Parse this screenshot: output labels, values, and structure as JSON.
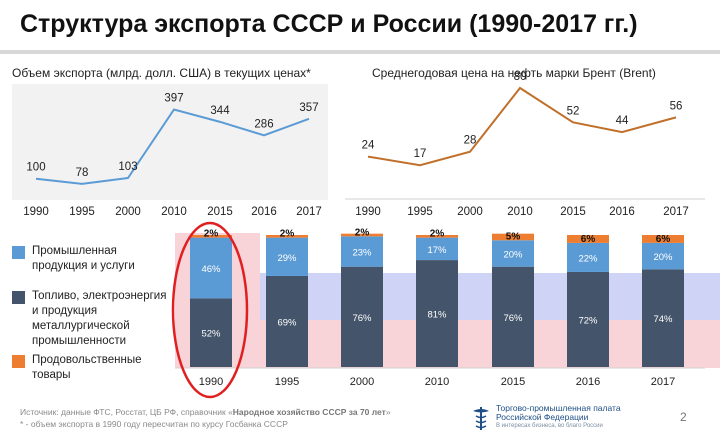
{
  "page": {
    "title": "Структура экспорта СССР и России (1990-2017 гг.)",
    "page_number": "2"
  },
  "colors": {
    "line_export": "#5b9bd5",
    "line_oil": "#c0702a",
    "industrial": "#5b9bd5",
    "fuel": "#44546a",
    "food": "#ed7d31",
    "band_blue": "#cfd3f6",
    "band_pink": "#f8d3d8",
    "highlight_circle": "#e02020"
  },
  "legend": [
    {
      "key": "industrial",
      "label": "Промышленная\nпродукция и услуги"
    },
    {
      "key": "fuel",
      "label": "Топливо, электроэнергия\nи продукция\nметаллургической\nпромышленности"
    },
    {
      "key": "food",
      "label": "Продовольственные\nтовары"
    }
  ],
  "footer": {
    "source_prefix": "Источник: данные ФТС, Росстат, ЦБ РФ, справочник «",
    "source_bold": "Народное хозяйство СССР за 70 лет",
    "source_suffix": "»",
    "note": "* - объем экспорта в 1990 году пересчитан по курсу Госбанка СССР"
  },
  "logo": {
    "line1": "Торгово-промышленная палата",
    "line2": "Российской Федерации",
    "line3": "В интересах бизнеса, во благо России"
  },
  "chart_data": [
    {
      "type": "line",
      "title": "Объем экспорта (млрд. долл. США) в текущих ценах*",
      "categories": [
        "1990",
        "1995",
        "2000",
        "2010",
        "2015",
        "2016",
        "2017"
      ],
      "series": [
        {
          "values": [
            100,
            78,
            103,
            397,
            344,
            286,
            357
          ]
        }
      ]
    },
    {
      "type": "line",
      "title": "Среднегодовая цена на нефть марки Брент (Brent)",
      "categories": [
        "1990",
        "1995",
        "2000",
        "2010",
        "2015",
        "2016",
        "2017"
      ],
      "series": [
        {
          "values": [
            24,
            17,
            28,
            80,
            52,
            44,
            56
          ]
        }
      ]
    },
    {
      "type": "bar",
      "stacked": true,
      "percent": true,
      "categories": [
        "1990",
        "1995",
        "2000",
        "2010",
        "2015",
        "2016",
        "2017"
      ],
      "series": [
        {
          "key": "fuel",
          "values": [
            52,
            69,
            76,
            81,
            76,
            72,
            74
          ]
        },
        {
          "key": "industrial",
          "values": [
            46,
            29,
            23,
            17,
            20,
            22,
            20
          ]
        },
        {
          "key": "food",
          "values": [
            2,
            2,
            2,
            2,
            5,
            6,
            6
          ]
        }
      ],
      "highlighted_category": "1990"
    }
  ]
}
